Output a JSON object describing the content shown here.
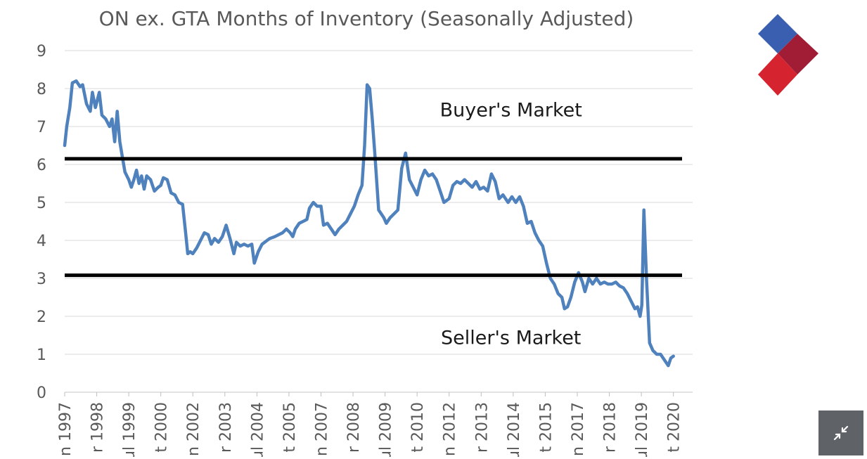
{
  "chart_data": {
    "type": "line",
    "title": "ON ex. GTA Months of Inventory (Seasonally Adjusted)",
    "xlabel": "",
    "ylabel": "",
    "ylim": [
      0,
      9
    ],
    "yticks": [
      "0",
      "1",
      "2",
      "3",
      "4",
      "5",
      "6",
      "7",
      "8",
      "9"
    ],
    "x_tick_labels": [
      "n 1997",
      "r 1998",
      "ul 1999",
      "t 2000",
      "n 2002",
      "r 2003",
      "ul 2004",
      "t 2005",
      "n 2007",
      "r 2008",
      "ul 2009",
      "t 2010",
      "n 2012",
      "r 2013",
      "ul 2014",
      "t 2015",
      "n 2017",
      "r 2018",
      "ul 2019",
      "t 2020"
    ],
    "x_tick_years": [
      1997.0,
      1998.25,
      1999.5,
      2000.75,
      2002.0,
      2003.25,
      2004.5,
      2005.75,
      2007.0,
      2008.25,
      2009.5,
      2010.75,
      2012.0,
      2013.25,
      2014.5,
      2015.75,
      2017.0,
      2018.25,
      2019.5,
      2020.75
    ],
    "x_range": [
      1997.0,
      2021.5
    ],
    "grid": true,
    "legend": "none",
    "series": [
      {
        "name": "",
        "color": "#4f81bd",
        "points": [
          [
            1997.0,
            6.5
          ],
          [
            1997.08,
            7.0
          ],
          [
            1997.2,
            7.5
          ],
          [
            1997.3,
            8.15
          ],
          [
            1997.45,
            8.2
          ],
          [
            1997.6,
            8.05
          ],
          [
            1997.7,
            8.1
          ],
          [
            1997.85,
            7.6
          ],
          [
            1998.0,
            7.4
          ],
          [
            1998.08,
            7.9
          ],
          [
            1998.2,
            7.5
          ],
          [
            1998.35,
            7.9
          ],
          [
            1998.45,
            7.3
          ],
          [
            1998.6,
            7.2
          ],
          [
            1998.75,
            7.0
          ],
          [
            1998.85,
            7.2
          ],
          [
            1998.95,
            6.6
          ],
          [
            1999.05,
            7.4
          ],
          [
            1999.15,
            6.6
          ],
          [
            1999.25,
            6.2
          ],
          [
            1999.35,
            5.8
          ],
          [
            1999.5,
            5.6
          ],
          [
            1999.6,
            5.4
          ],
          [
            1999.7,
            5.6
          ],
          [
            1999.8,
            5.85
          ],
          [
            1999.9,
            5.5
          ],
          [
            2000.0,
            5.7
          ],
          [
            2000.1,
            5.35
          ],
          [
            2000.2,
            5.7
          ],
          [
            2000.35,
            5.6
          ],
          [
            2000.5,
            5.3
          ],
          [
            2000.65,
            5.4
          ],
          [
            2000.75,
            5.45
          ],
          [
            2000.85,
            5.65
          ],
          [
            2001.0,
            5.6
          ],
          [
            2001.15,
            5.25
          ],
          [
            2001.3,
            5.2
          ],
          [
            2001.45,
            5.0
          ],
          [
            2001.6,
            4.95
          ],
          [
            2001.72,
            4.2
          ],
          [
            2001.8,
            3.65
          ],
          [
            2001.9,
            3.7
          ],
          [
            2002.0,
            3.65
          ],
          [
            2002.15,
            3.8
          ],
          [
            2002.3,
            4.0
          ],
          [
            2002.45,
            4.2
          ],
          [
            2002.6,
            4.15
          ],
          [
            2002.72,
            3.9
          ],
          [
            2002.85,
            4.05
          ],
          [
            2003.0,
            3.95
          ],
          [
            2003.15,
            4.1
          ],
          [
            2003.3,
            4.4
          ],
          [
            2003.45,
            4.05
          ],
          [
            2003.6,
            3.65
          ],
          [
            2003.7,
            3.95
          ],
          [
            2003.85,
            3.85
          ],
          [
            2004.0,
            3.9
          ],
          [
            2004.15,
            3.85
          ],
          [
            2004.3,
            3.9
          ],
          [
            2004.4,
            3.4
          ],
          [
            2004.55,
            3.7
          ],
          [
            2004.7,
            3.9
          ],
          [
            2004.9,
            4.0
          ],
          [
            2005.0,
            4.05
          ],
          [
            2005.2,
            4.1
          ],
          [
            2005.35,
            4.15
          ],
          [
            2005.5,
            4.2
          ],
          [
            2005.65,
            4.3
          ],
          [
            2005.8,
            4.2
          ],
          [
            2005.9,
            4.1
          ],
          [
            2006.0,
            4.3
          ],
          [
            2006.15,
            4.45
          ],
          [
            2006.3,
            4.5
          ],
          [
            2006.45,
            4.55
          ],
          [
            2006.55,
            4.85
          ],
          [
            2006.7,
            5.0
          ],
          [
            2006.85,
            4.9
          ],
          [
            2007.0,
            4.9
          ],
          [
            2007.1,
            4.4
          ],
          [
            2007.25,
            4.45
          ],
          [
            2007.4,
            4.3
          ],
          [
            2007.55,
            4.15
          ],
          [
            2007.7,
            4.3
          ],
          [
            2007.85,
            4.4
          ],
          [
            2008.0,
            4.5
          ],
          [
            2008.15,
            4.7
          ],
          [
            2008.3,
            4.9
          ],
          [
            2008.45,
            5.2
          ],
          [
            2008.6,
            5.45
          ],
          [
            2008.7,
            6.5
          ],
          [
            2008.8,
            8.1
          ],
          [
            2008.9,
            8.0
          ],
          [
            2009.0,
            7.2
          ],
          [
            2009.1,
            6.3
          ],
          [
            2009.25,
            4.8
          ],
          [
            2009.45,
            4.6
          ],
          [
            2009.55,
            4.45
          ],
          [
            2009.7,
            4.6
          ],
          [
            2009.85,
            4.7
          ],
          [
            2010.0,
            4.8
          ],
          [
            2010.15,
            5.9
          ],
          [
            2010.3,
            6.3
          ],
          [
            2010.45,
            5.6
          ],
          [
            2010.6,
            5.4
          ],
          [
            2010.75,
            5.2
          ],
          [
            2010.9,
            5.6
          ],
          [
            2011.05,
            5.85
          ],
          [
            2011.2,
            5.7
          ],
          [
            2011.35,
            5.75
          ],
          [
            2011.5,
            5.6
          ],
          [
            2011.65,
            5.3
          ],
          [
            2011.8,
            5.0
          ],
          [
            2012.0,
            5.1
          ],
          [
            2012.15,
            5.45
          ],
          [
            2012.3,
            5.55
          ],
          [
            2012.45,
            5.5
          ],
          [
            2012.6,
            5.6
          ],
          [
            2012.75,
            5.5
          ],
          [
            2012.9,
            5.4
          ],
          [
            2013.05,
            5.55
          ],
          [
            2013.2,
            5.35
          ],
          [
            2013.35,
            5.4
          ],
          [
            2013.5,
            5.3
          ],
          [
            2013.65,
            5.75
          ],
          [
            2013.8,
            5.55
          ],
          [
            2013.95,
            5.1
          ],
          [
            2014.1,
            5.2
          ],
          [
            2014.3,
            5.0
          ],
          [
            2014.45,
            5.15
          ],
          [
            2014.6,
            5.0
          ],
          [
            2014.75,
            5.15
          ],
          [
            2014.9,
            4.9
          ],
          [
            2015.05,
            4.45
          ],
          [
            2015.2,
            4.5
          ],
          [
            2015.35,
            4.2
          ],
          [
            2015.5,
            4.0
          ],
          [
            2015.65,
            3.85
          ],
          [
            2015.8,
            3.4
          ],
          [
            2015.95,
            3.0
          ],
          [
            2016.1,
            2.85
          ],
          [
            2016.25,
            2.6
          ],
          [
            2016.4,
            2.5
          ],
          [
            2016.5,
            2.2
          ],
          [
            2016.62,
            2.25
          ],
          [
            2016.75,
            2.5
          ],
          [
            2016.9,
            2.9
          ],
          [
            2017.05,
            3.15
          ],
          [
            2017.2,
            2.9
          ],
          [
            2017.3,
            2.65
          ],
          [
            2017.45,
            3.0
          ],
          [
            2017.6,
            2.85
          ],
          [
            2017.75,
            3.0
          ],
          [
            2017.9,
            2.85
          ],
          [
            2018.05,
            2.9
          ],
          [
            2018.2,
            2.85
          ],
          [
            2018.35,
            2.85
          ],
          [
            2018.5,
            2.9
          ],
          [
            2018.65,
            2.8
          ],
          [
            2018.8,
            2.75
          ],
          [
            2018.95,
            2.6
          ],
          [
            2019.1,
            2.4
          ],
          [
            2019.25,
            2.2
          ],
          [
            2019.35,
            2.25
          ],
          [
            2019.45,
            2.0
          ],
          [
            2019.52,
            2.3
          ],
          [
            2019.6,
            4.8
          ],
          [
            2019.7,
            3.0
          ],
          [
            2019.82,
            1.3
          ],
          [
            2019.95,
            1.1
          ],
          [
            2020.1,
            1.0
          ],
          [
            2020.25,
            1.0
          ],
          [
            2020.4,
            0.85
          ],
          [
            2020.55,
            0.7
          ],
          [
            2020.65,
            0.9
          ],
          [
            2020.75,
            0.95
          ]
        ]
      }
    ],
    "reference_lines": [
      {
        "y": 6.15,
        "color": "#000000"
      },
      {
        "y": 3.08,
        "color": "#000000"
      }
    ],
    "annotations": [
      {
        "text": "Buyer's Market",
        "x": 2012.0,
        "y": 7.45
      },
      {
        "text": "Seller's Market",
        "x": 2012.0,
        "y": 1.45
      }
    ]
  },
  "logo": {
    "colors": [
      "#3a5fb0",
      "#a11d35",
      "#d5242f"
    ]
  },
  "controls": {
    "minimize_icon": "minimize-arrows-icon"
  }
}
